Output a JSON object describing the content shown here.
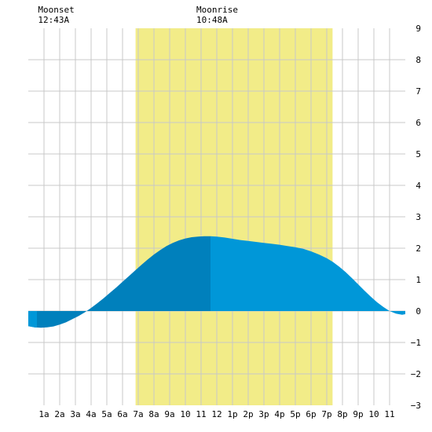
{
  "chart_data": {
    "type": "area",
    "title": "",
    "xlabel": "",
    "ylabel": "",
    "xlim": [
      0,
      24
    ],
    "ylim": [
      -3,
      9
    ],
    "grid": true,
    "legend": "none",
    "x_tick_labels": [
      "1a",
      "2a",
      "3a",
      "4a",
      "5a",
      "6a",
      "7a",
      "8a",
      "9a",
      "10",
      "11",
      "12",
      "1p",
      "2p",
      "3p",
      "4p",
      "5p",
      "6p",
      "7p",
      "8p",
      "9p",
      "10",
      "11"
    ],
    "y_ticks": [
      -3,
      -2,
      -1,
      0,
      1,
      2,
      3,
      4,
      5,
      6,
      7,
      8,
      9
    ],
    "y_tick_labels": [
      "−3",
      "−2",
      "−1",
      "0",
      "1",
      "2",
      "3",
      "4",
      "5",
      "6",
      "7",
      "8",
      "9"
    ],
    "daylight": {
      "start": 6.83,
      "end": 19.37
    },
    "moon_events": [
      {
        "label": "Moonset",
        "time": "12:43A",
        "x": 0.72
      },
      {
        "label": "Moonrise",
        "time": "10:48A",
        "x": 10.8
      }
    ],
    "tide": {
      "x": [
        0,
        0.4,
        0.8,
        1.2,
        1.6,
        2.0,
        2.4,
        2.8,
        3.2,
        3.6,
        4.0,
        4.4,
        4.8,
        5.2,
        5.6,
        6.0,
        6.4,
        6.8,
        7.2,
        7.6,
        8.0,
        8.4,
        8.8,
        9.2,
        9.6,
        10.0,
        10.4,
        10.8,
        11.2,
        11.6,
        12.0,
        12.5,
        13.0,
        13.5,
        14.0,
        14.5,
        15.0,
        15.5,
        16.0,
        16.5,
        17.0,
        17.5,
        18.0,
        18.5,
        19.0,
        19.4,
        19.8,
        20.2,
        20.6,
        21.0,
        21.4,
        21.8,
        22.2,
        22.6,
        23.0,
        23.4,
        23.8,
        24.0
      ],
      "y": [
        -0.48,
        -0.52,
        -0.53,
        -0.52,
        -0.49,
        -0.43,
        -0.36,
        -0.26,
        -0.16,
        -0.04,
        0.1,
        0.25,
        0.41,
        0.58,
        0.75,
        0.93,
        1.11,
        1.29,
        1.47,
        1.64,
        1.8,
        1.94,
        2.07,
        2.17,
        2.25,
        2.31,
        2.35,
        2.37,
        2.38,
        2.38,
        2.37,
        2.34,
        2.3,
        2.26,
        2.23,
        2.2,
        2.17,
        2.14,
        2.11,
        2.07,
        2.03,
        1.98,
        1.9,
        1.8,
        1.68,
        1.56,
        1.41,
        1.24,
        1.05,
        0.85,
        0.65,
        0.46,
        0.28,
        0.13,
        0.0,
        -0.08,
        -0.12,
        -0.1
      ]
    },
    "shade_split_x": 11.6,
    "colors": {
      "daylight": "#f2ec88",
      "tide_light": "#0097d8",
      "tide_dark": "#0080bc",
      "grid": "#c8c8c8",
      "background": "#ffffff"
    }
  }
}
